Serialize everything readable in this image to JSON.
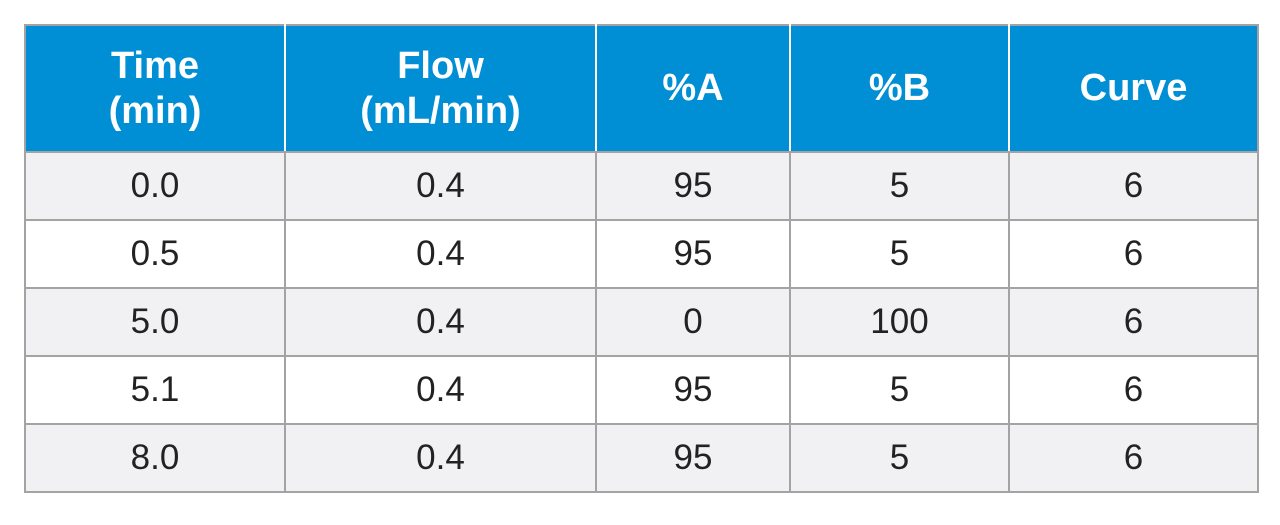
{
  "table": {
    "headers": [
      {
        "line1": "Time",
        "line2": "(min)"
      },
      {
        "line1": "Flow",
        "line2": "(mL/min)"
      },
      {
        "line1": "%A",
        "line2": ""
      },
      {
        "line1": "%B",
        "line2": ""
      },
      {
        "line1": "Curve",
        "line2": ""
      }
    ],
    "rows": [
      [
        "0.0",
        "0.4",
        "95",
        "5",
        "6"
      ],
      [
        "0.5",
        "0.4",
        "95",
        "5",
        "6"
      ],
      [
        "5.0",
        "0.4",
        "0",
        "100",
        "6"
      ],
      [
        "5.1",
        "0.4",
        "95",
        "5",
        "6"
      ],
      [
        "8.0",
        "0.4",
        "95",
        "5",
        "6"
      ]
    ]
  },
  "colors": {
    "header_background": "#008fd5",
    "header_text": "#ffffff",
    "row_shaded": "#f1f1f4",
    "row_plain": "#ffffff",
    "border": "#a3a3a3"
  }
}
